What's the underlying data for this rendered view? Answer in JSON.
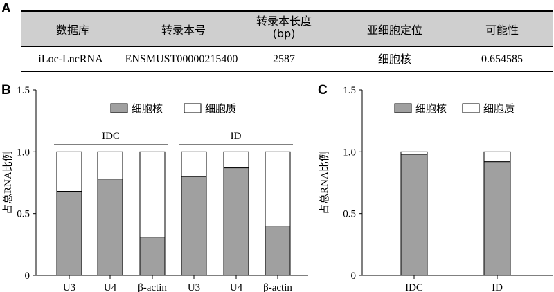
{
  "panels": {
    "a": "A",
    "b": "B",
    "c": "C"
  },
  "table": {
    "headers": [
      "数据库",
      "转录本号",
      "转录本长度\n(bp)",
      "亚细胞定位",
      "可能性"
    ],
    "row": [
      "iLoc-LncRNA",
      "ENSMUST00000215400",
      "2587",
      "细胞核",
      "0.654585"
    ]
  },
  "colors": {
    "nucleus": "#a0a0a0",
    "cytoplasm": "#ffffff",
    "table_header": "#cfcfcf"
  },
  "chart_data": [
    {
      "type": "bar",
      "stacked": true,
      "panel": "B",
      "categories": [
        "U3",
        "U4",
        "β-actin",
        "U3",
        "U4",
        "β-actin"
      ],
      "groups": [
        {
          "label": "IDC",
          "categories": [
            0,
            1,
            2
          ]
        },
        {
          "label": "ID",
          "categories": [
            3,
            4,
            5
          ]
        }
      ],
      "series": [
        {
          "name": "细胞核",
          "color": "#a0a0a0",
          "values": [
            0.68,
            0.78,
            0.31,
            0.8,
            0.87,
            0.4
          ]
        },
        {
          "name": "细胞质",
          "color": "#ffffff",
          "values": [
            0.32,
            0.22,
            0.69,
            0.2,
            0.13,
            0.6
          ]
        }
      ],
      "ylabel": "占总RNA比例",
      "ylim": [
        0,
        1.5
      ],
      "yticks": [
        "0",
        "0.5",
        "1.0",
        "1.5"
      ],
      "legend_position": "top"
    },
    {
      "type": "bar",
      "stacked": true,
      "panel": "C",
      "categories": [
        "IDC",
        "ID"
      ],
      "series": [
        {
          "name": "细胞核",
          "color": "#a0a0a0",
          "values": [
            0.98,
            0.92
          ]
        },
        {
          "name": "细胞质",
          "color": "#ffffff",
          "values": [
            0.02,
            0.08
          ]
        }
      ],
      "ylabel": "占总RNA比例",
      "ylim": [
        0,
        1.5
      ],
      "yticks": [
        "0",
        "0.5",
        "1.0",
        "1.5"
      ],
      "legend_position": "top"
    }
  ]
}
